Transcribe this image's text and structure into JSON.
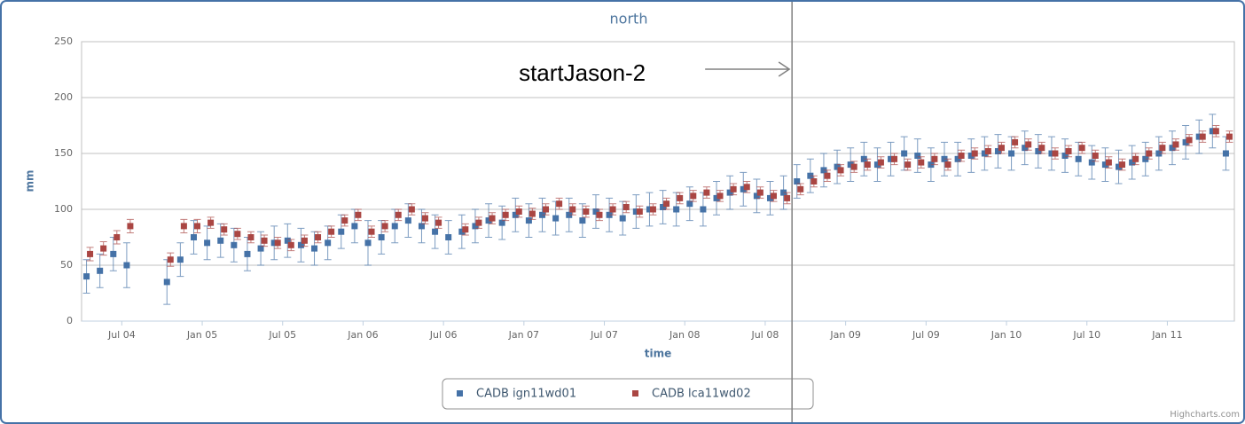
{
  "chart_data": {
    "type": "errorbar-scatter",
    "title": "north",
    "x_label": "time",
    "y_label": "mm",
    "credit": "Highcharts.com",
    "annotation": {
      "text": "startJason-2",
      "x": "2008-09"
    },
    "xlim": [
      "2004-04",
      "2011-06"
    ],
    "xticks": [
      {
        "value": "2004-07",
        "label": "Jul 04"
      },
      {
        "value": "2005-01",
        "label": "Jan 05"
      },
      {
        "value": "2005-07",
        "label": "Jul 05"
      },
      {
        "value": "2006-01",
        "label": "Jan 06"
      },
      {
        "value": "2006-07",
        "label": "Jul 06"
      },
      {
        "value": "2007-01",
        "label": "Jan 07"
      },
      {
        "value": "2007-07",
        "label": "Jul 07"
      },
      {
        "value": "2008-01",
        "label": "Jan 08"
      },
      {
        "value": "2008-07",
        "label": "Jul 08"
      },
      {
        "value": "2009-01",
        "label": "Jan 09"
      },
      {
        "value": "2009-07",
        "label": "Jul 09"
      },
      {
        "value": "2010-01",
        "label": "Jan 10"
      },
      {
        "value": "2010-07",
        "label": "Jul 10"
      },
      {
        "value": "2011-01",
        "label": "Jan 11"
      }
    ],
    "ylim": [
      0,
      250
    ],
    "yticks": [
      0,
      50,
      100,
      150,
      200,
      250
    ],
    "grid": true,
    "legend": "bottom",
    "x": [
      "2004-04",
      "2004-05",
      "2004-06",
      "2004-07",
      "2004-08",
      "2004-09",
      "2004-10",
      "2004-11",
      "2004-12",
      "2005-01",
      "2005-02",
      "2005-03",
      "2005-04",
      "2005-05",
      "2005-06",
      "2005-07",
      "2005-08",
      "2005-09",
      "2005-10",
      "2005-11",
      "2005-12",
      "2006-01",
      "2006-02",
      "2006-03",
      "2006-04",
      "2006-05",
      "2006-06",
      "2006-07",
      "2006-08",
      "2006-09",
      "2006-10",
      "2006-11",
      "2006-12",
      "2007-01",
      "2007-02",
      "2007-03",
      "2007-04",
      "2007-05",
      "2007-06",
      "2007-07",
      "2007-08",
      "2007-09",
      "2007-10",
      "2007-11",
      "2007-12",
      "2008-01",
      "2008-02",
      "2008-03",
      "2008-04",
      "2008-05",
      "2008-06",
      "2008-07",
      "2008-08",
      "2008-09",
      "2008-10",
      "2008-11",
      "2008-12",
      "2009-01",
      "2009-02",
      "2009-03",
      "2009-04",
      "2009-05",
      "2009-06",
      "2009-07",
      "2009-08",
      "2009-09",
      "2009-10",
      "2009-11",
      "2009-12",
      "2010-01",
      "2010-02",
      "2010-03",
      "2010-04",
      "2010-05",
      "2010-06",
      "2010-07",
      "2010-08",
      "2010-09",
      "2010-10",
      "2010-11",
      "2010-12",
      "2011-01",
      "2011-02",
      "2011-03",
      "2011-04",
      "2011-05"
    ],
    "series": [
      {
        "name": "CADB ign11wd01",
        "color": "#4572a7",
        "values": [
          40,
          45,
          60,
          50,
          null,
          null,
          35,
          55,
          75,
          70,
          72,
          68,
          60,
          65,
          70,
          72,
          68,
          65,
          70,
          80,
          85,
          70,
          75,
          85,
          90,
          85,
          80,
          75,
          80,
          85,
          90,
          88,
          95,
          90,
          95,
          92,
          95,
          90,
          98,
          95,
          92,
          98,
          100,
          102,
          100,
          105,
          100,
          110,
          115,
          118,
          112,
          110,
          115,
          125,
          130,
          135,
          138,
          140,
          145,
          140,
          145,
          150,
          148,
          140,
          145,
          145,
          148,
          150,
          152,
          150,
          155,
          152,
          150,
          148,
          145,
          142,
          140,
          138,
          142,
          145,
          150,
          155,
          160,
          165,
          170,
          150
        ],
        "errors": [
          15,
          15,
          15,
          20,
          null,
          null,
          20,
          15,
          15,
          15,
          15,
          15,
          15,
          15,
          15,
          15,
          15,
          15,
          15,
          15,
          15,
          20,
          15,
          15,
          15,
          15,
          15,
          15,
          15,
          15,
          15,
          15,
          15,
          15,
          15,
          15,
          15,
          15,
          15,
          15,
          15,
          15,
          15,
          15,
          15,
          15,
          15,
          15,
          15,
          15,
          15,
          15,
          15,
          15,
          15,
          15,
          15,
          15,
          15,
          15,
          15,
          15,
          15,
          15,
          15,
          15,
          15,
          15,
          15,
          15,
          15,
          15,
          15,
          15,
          15,
          15,
          15,
          15,
          15,
          15,
          15,
          15,
          15,
          15,
          15,
          15
        ]
      },
      {
        "name": "CADB lca11wd02",
        "color": "#aa4643",
        "values": [
          60,
          65,
          75,
          85,
          null,
          null,
          55,
          85,
          85,
          88,
          82,
          78,
          75,
          72,
          70,
          68,
          72,
          75,
          80,
          90,
          95,
          80,
          85,
          95,
          100,
          92,
          88,
          null,
          82,
          88,
          92,
          95,
          98,
          96,
          100,
          105,
          100,
          98,
          95,
          100,
          102,
          98,
          100,
          105,
          110,
          112,
          115,
          112,
          118,
          120,
          115,
          112,
          110,
          118,
          125,
          130,
          135,
          138,
          140,
          142,
          145,
          140,
          142,
          145,
          140,
          148,
          150,
          152,
          155,
          160,
          158,
          155,
          150,
          152,
          155,
          148,
          142,
          140,
          145,
          150,
          155,
          158,
          162,
          165,
          170,
          165
        ],
        "errors": [
          6,
          6,
          6,
          6,
          null,
          null,
          6,
          6,
          6,
          5,
          5,
          5,
          5,
          5,
          5,
          5,
          5,
          5,
          5,
          5,
          5,
          5,
          5,
          5,
          5,
          5,
          5,
          null,
          5,
          5,
          5,
          5,
          5,
          5,
          5,
          5,
          5,
          5,
          5,
          5,
          5,
          5,
          5,
          5,
          5,
          5,
          5,
          5,
          5,
          5,
          5,
          5,
          5,
          5,
          5,
          5,
          5,
          5,
          5,
          5,
          5,
          5,
          5,
          5,
          5,
          5,
          5,
          5,
          5,
          5,
          5,
          5,
          5,
          5,
          5,
          5,
          5,
          5,
          5,
          5,
          5,
          5,
          5,
          5,
          5,
          5
        ]
      }
    ]
  }
}
